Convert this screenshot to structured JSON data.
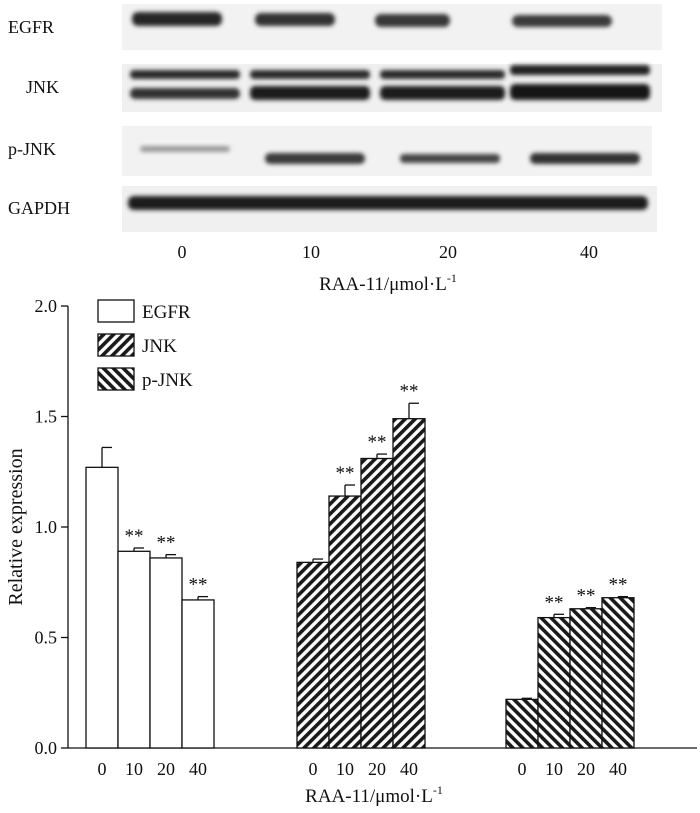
{
  "blot": {
    "labels": [
      "EGFR",
      "JNK",
      "p-JNK",
      "GAPDH"
    ],
    "lanes": [
      "0",
      "10",
      "20",
      "40"
    ],
    "xlabel_main": "RAA-11/μmol·L",
    "xlabel_sup": "-1"
  },
  "chart_data": {
    "type": "bar",
    "ylabel": "Relative expression",
    "ylim": [
      0,
      2.0
    ],
    "yticks": [
      "0.0",
      "0.5",
      "1.0",
      "1.5",
      "2.0"
    ],
    "categories": [
      "0",
      "10",
      "20",
      "40"
    ],
    "xlabel_main": "RAA-11/μmol·L",
    "xlabel_sup": "-1",
    "legend_position": "top-left",
    "significance_mark": "**",
    "series": [
      {
        "name": "EGFR",
        "values": [
          1.27,
          0.89,
          0.86,
          0.67
        ],
        "errors": [
          0.09,
          0.015,
          0.015,
          0.015
        ],
        "significant": [
          false,
          true,
          true,
          true
        ],
        "pattern": "none"
      },
      {
        "name": "JNK",
        "values": [
          0.84,
          1.14,
          1.31,
          1.49
        ],
        "errors": [
          0.015,
          0.05,
          0.02,
          0.07
        ],
        "significant": [
          false,
          true,
          true,
          true
        ],
        "pattern": "forward-hatch"
      },
      {
        "name": "p-JNK",
        "values": [
          0.22,
          0.59,
          0.63,
          0.68
        ],
        "errors": [
          0.005,
          0.015,
          0.005,
          0.005
        ],
        "significant": [
          false,
          true,
          true,
          true
        ],
        "pattern": "back-hatch"
      }
    ]
  }
}
